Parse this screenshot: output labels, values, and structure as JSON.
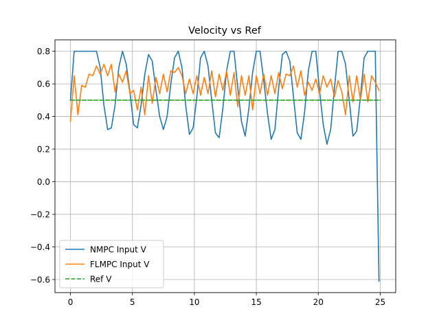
{
  "chart_data": {
    "type": "line",
    "title": "Velocity vs Ref",
    "xlabel": "",
    "ylabel": "",
    "xlim": [
      -1.25,
      26.25
    ],
    "ylim": [
      -0.68,
      0.87
    ],
    "xticks": [
      0,
      5,
      10,
      15,
      20,
      25
    ],
    "xtick_labels": [
      "0",
      "5",
      "10",
      "15",
      "20",
      "25"
    ],
    "yticks": [
      -0.6,
      -0.4,
      -0.2,
      0.0,
      0.2,
      0.4,
      0.6,
      0.8
    ],
    "ytick_labels": [
      "−0.6",
      "−0.4",
      "−0.2",
      "0.0",
      "0.2",
      "0.4",
      "0.6",
      "0.8"
    ],
    "grid": true,
    "legend_position": "lower-left",
    "series": [
      {
        "name": "NMPC Input V",
        "color": "#1f77b4",
        "style": "solid",
        "x": [
          0.0,
          0.3,
          0.6,
          1.0,
          1.5,
          2.0,
          2.1,
          2.4,
          2.7,
          3.0,
          3.3,
          3.6,
          3.9,
          4.2,
          4.5,
          4.8,
          5.1,
          5.4,
          5.7,
          6.0,
          6.3,
          6.6,
          6.9,
          7.2,
          7.5,
          7.8,
          8.1,
          8.4,
          8.7,
          9.0,
          9.3,
          9.6,
          9.9,
          10.2,
          10.5,
          10.8,
          11.1,
          11.4,
          11.7,
          12.0,
          12.3,
          12.6,
          12.9,
          13.2,
          13.5,
          13.8,
          14.1,
          14.4,
          14.7,
          15.0,
          15.3,
          15.6,
          15.9,
          16.2,
          16.5,
          16.8,
          17.1,
          17.4,
          17.7,
          18.0,
          18.3,
          18.6,
          18.9,
          19.2,
          19.5,
          19.8,
          20.1,
          20.4,
          20.7,
          21.0,
          21.3,
          21.6,
          21.9,
          22.2,
          22.5,
          22.8,
          23.1,
          23.4,
          23.7,
          24.0,
          24.3,
          24.6,
          24.9
        ],
        "y": [
          0.5,
          0.8,
          0.8,
          0.8,
          0.8,
          0.8,
          0.8,
          0.7,
          0.47,
          0.32,
          0.33,
          0.47,
          0.7,
          0.8,
          0.72,
          0.55,
          0.35,
          0.33,
          0.47,
          0.66,
          0.78,
          0.74,
          0.56,
          0.4,
          0.32,
          0.4,
          0.6,
          0.76,
          0.8,
          0.7,
          0.47,
          0.29,
          0.33,
          0.52,
          0.76,
          0.8,
          0.71,
          0.5,
          0.3,
          0.27,
          0.45,
          0.68,
          0.8,
          0.8,
          0.58,
          0.37,
          0.28,
          0.45,
          0.67,
          0.8,
          0.8,
          0.62,
          0.42,
          0.26,
          0.32,
          0.57,
          0.78,
          0.8,
          0.74,
          0.52,
          0.3,
          0.26,
          0.43,
          0.68,
          0.8,
          0.8,
          0.56,
          0.35,
          0.23,
          0.32,
          0.57,
          0.8,
          0.8,
          0.72,
          0.5,
          0.28,
          0.31,
          0.52,
          0.76,
          0.8,
          0.8,
          0.8,
          -0.61
        ]
      },
      {
        "name": "FLMPC Input V",
        "color": "#ff7f0e",
        "style": "solid",
        "x": [
          0.0,
          0.3,
          0.6,
          0.9,
          1.2,
          1.5,
          1.8,
          2.1,
          2.4,
          2.7,
          3.0,
          3.3,
          3.6,
          3.9,
          4.2,
          4.5,
          4.8,
          5.1,
          5.4,
          5.7,
          6.0,
          6.3,
          6.6,
          6.9,
          7.2,
          7.5,
          7.8,
          8.1,
          8.4,
          8.7,
          9.0,
          9.3,
          9.6,
          9.9,
          10.2,
          10.5,
          10.8,
          11.1,
          11.4,
          11.7,
          12.0,
          12.3,
          12.6,
          12.9,
          13.2,
          13.5,
          13.8,
          14.1,
          14.4,
          14.7,
          15.0,
          15.3,
          15.6,
          15.9,
          16.2,
          16.5,
          16.8,
          17.1,
          17.4,
          17.7,
          18.0,
          18.3,
          18.6,
          18.9,
          19.2,
          19.5,
          19.8,
          20.1,
          20.4,
          20.7,
          21.0,
          21.3,
          21.6,
          21.9,
          22.2,
          22.5,
          22.8,
          23.1,
          23.4,
          23.7,
          24.0,
          24.3,
          24.6,
          24.9
        ],
        "y": [
          0.37,
          0.65,
          0.41,
          0.59,
          0.58,
          0.66,
          0.65,
          0.71,
          0.66,
          0.72,
          0.65,
          0.72,
          0.55,
          0.66,
          0.61,
          0.68,
          0.54,
          0.56,
          0.44,
          0.58,
          0.41,
          0.65,
          0.48,
          0.64,
          0.54,
          0.66,
          0.55,
          0.68,
          0.67,
          0.7,
          0.65,
          0.54,
          0.63,
          0.54,
          0.65,
          0.53,
          0.64,
          0.54,
          0.68,
          0.52,
          0.66,
          0.56,
          0.68,
          0.53,
          0.67,
          0.46,
          0.65,
          0.53,
          0.65,
          0.44,
          0.65,
          0.54,
          0.66,
          0.53,
          0.65,
          0.54,
          0.67,
          0.57,
          0.66,
          0.65,
          0.71,
          0.58,
          0.68,
          0.53,
          0.61,
          0.56,
          0.63,
          0.54,
          0.65,
          0.58,
          0.63,
          0.52,
          0.62,
          0.55,
          0.41,
          0.65,
          0.49,
          0.65,
          0.5,
          0.66,
          0.49,
          0.65,
          0.61,
          0.56
        ]
      },
      {
        "name": "Ref V",
        "color": "#2ca02c",
        "style": "dashed",
        "x": [
          0.0,
          25.0
        ],
        "y": [
          0.5,
          0.5
        ]
      }
    ]
  }
}
